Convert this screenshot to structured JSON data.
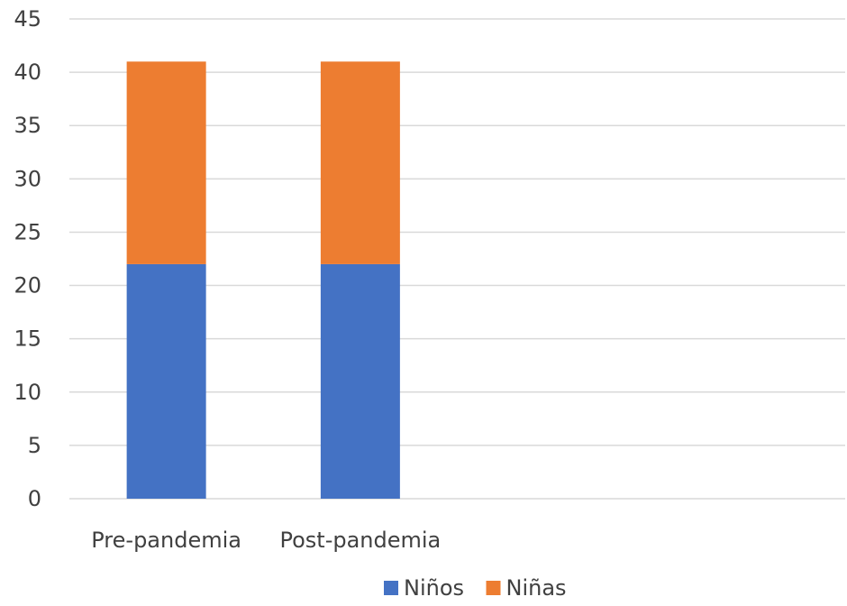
{
  "chart_data": {
    "type": "bar",
    "stacked": true,
    "categories": [
      "Pre-pandemia",
      "Post-pandemia",
      "",
      ""
    ],
    "series": [
      {
        "name": "Niños",
        "values": [
          22,
          22,
          null,
          null
        ],
        "color": "#4472c4"
      },
      {
        "name": "Niñas",
        "values": [
          19,
          19,
          null,
          null
        ],
        "color": "#ed7d31"
      }
    ],
    "title": "",
    "xlabel": "",
    "ylabel": "",
    "ylim": [
      0,
      45
    ],
    "yticks": [
      0,
      5,
      10,
      15,
      20,
      25,
      30,
      35,
      40,
      45
    ],
    "grid": true,
    "legend": "bottom"
  }
}
